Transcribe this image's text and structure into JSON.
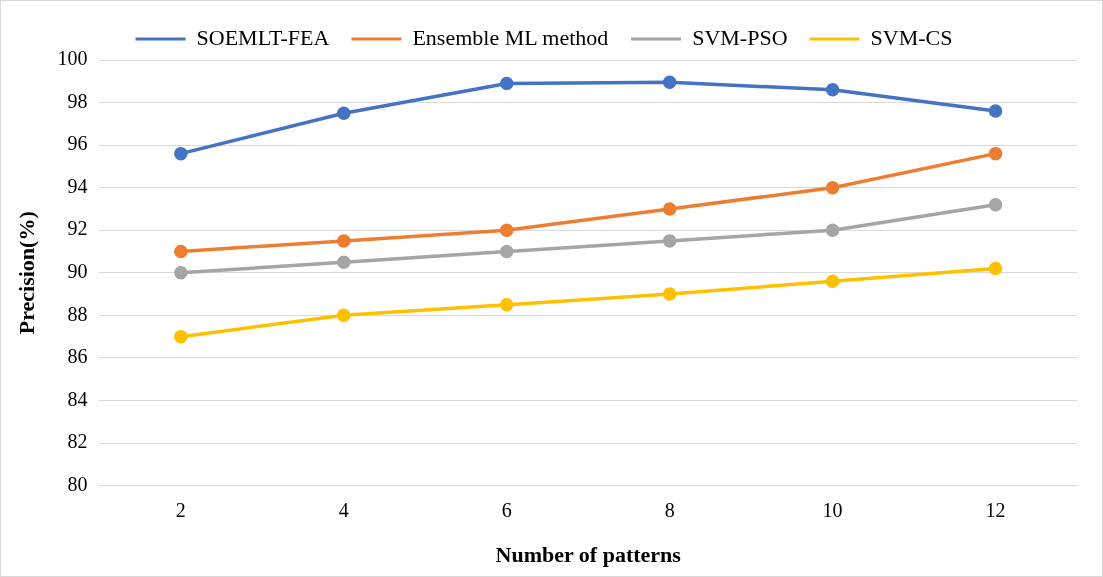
{
  "chart_data": {
    "type": "line",
    "xlabel": "Number of patterns",
    "ylabel": "Precision(%)",
    "categories": [
      "2",
      "4",
      "6",
      "8",
      "10",
      "12"
    ],
    "series": [
      {
        "name": "SOEMLT-FEA",
        "color": "#4472c4",
        "values": [
          95.6,
          97.5,
          98.9,
          98.95,
          98.6,
          97.6
        ]
      },
      {
        "name": "Ensemble ML method",
        "color": "#ed7d31",
        "values": [
          91,
          91.5,
          92,
          93,
          94,
          95.6
        ]
      },
      {
        "name": "SVM-PSO",
        "color": "#a5a5a5",
        "values": [
          90,
          90.5,
          91,
          91.5,
          92,
          93.2
        ]
      },
      {
        "name": "SVM-CS",
        "color": "#ffc000",
        "values": [
          87,
          88,
          88.5,
          89,
          89.6,
          90.2
        ]
      }
    ],
    "ylim": [
      80,
      100
    ],
    "yticks": [
      80,
      82,
      84,
      86,
      88,
      90,
      92,
      94,
      96,
      98,
      100
    ],
    "grid": "y",
    "legend": "top",
    "marker": "circle",
    "line_style": "solid"
  }
}
